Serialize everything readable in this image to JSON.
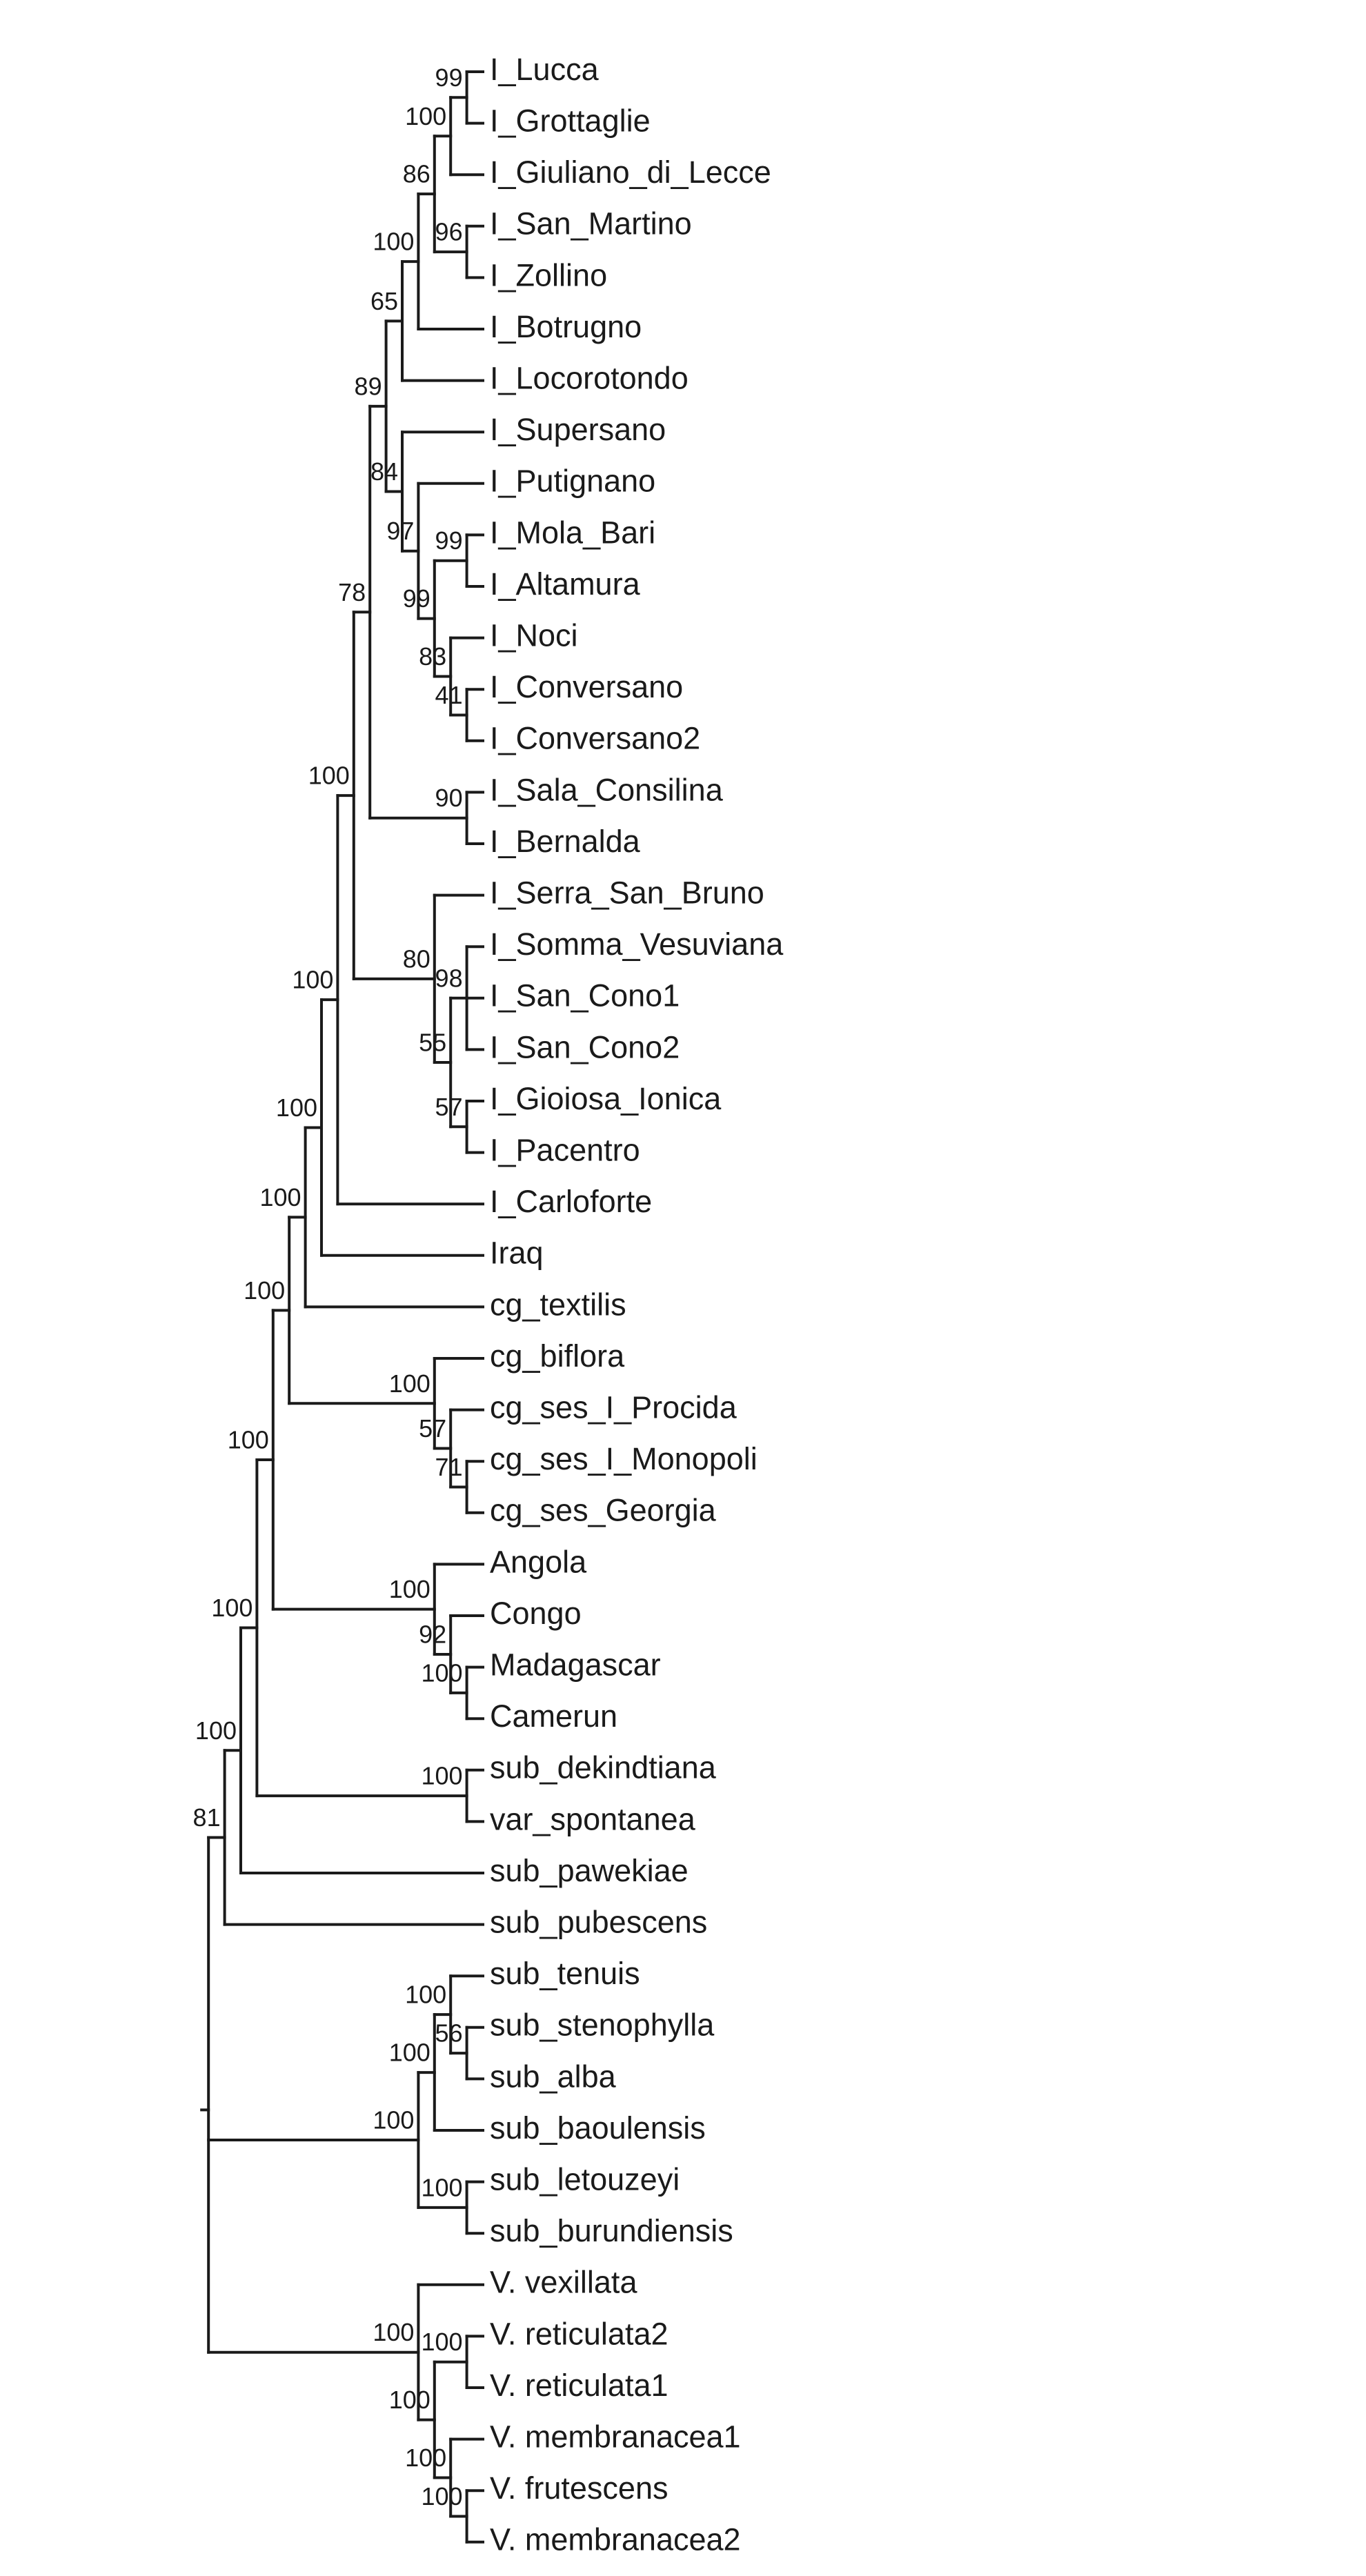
{
  "tree": {
    "label": null,
    "support": null,
    "children": [
      {
        "support": "81",
        "children": [
          {
            "support": "100",
            "children": [
              {
                "support": "100",
                "children": [
                  {
                    "support": "100",
                    "children": [
                      {
                        "support": "100",
                        "children": [
                          {
                            "support": "100",
                            "children": [
                              {
                                "support": "100",
                                "children": [
                                  {
                                    "support": "100",
                                    "children": [
                                      {
                                        "support": "100",
                                        "children": [
                                          {
                                            "support": "78",
                                            "children": [
                                              {
                                                "support": "89",
                                                "children": [
                                                  {
                                                    "support": "65",
                                                    "children": [
                                                      {
                                                        "support": "100",
                                                        "children": [
                                                          {
                                                            "support": "86",
                                                            "children": [
                                                              {
                                                                "support": "100",
                                                                "children": [
                                                                  {
                                                                    "support": "99",
                                                                    "children": [
                                                                      {
                                                                        "label": "I_Lucca"
                                                                      },
                                                                      {
                                                                        "label": "I_Grottaglie"
                                                                      }
                                                                    ]
                                                                  },
                                                                  {
                                                                    "label": "I_Giuliano_di_Lecce"
                                                                  }
                                                                ]
                                                              },
                                                              {
                                                                "support": "96",
                                                                "children": [
                                                                  {
                                                                    "label": "I_San_Martino"
                                                                  },
                                                                  {
                                                                    "label": "I_Zollino"
                                                                  }
                                                                ]
                                                              }
                                                            ]
                                                          },
                                                          {
                                                            "label": "I_Botrugno"
                                                          }
                                                        ]
                                                      },
                                                      {
                                                        "label": "I_Locorotondo"
                                                      }
                                                    ]
                                                  },
                                                  {
                                                    "support": "84",
                                                    "children": [
                                                      {
                                                        "label": "I_Supersano"
                                                      },
                                                      {
                                                        "support": "97",
                                                        "children": [
                                                          {
                                                            "label": "I_Putignano"
                                                          },
                                                          {
                                                            "support": "99",
                                                            "children": [
                                                              {
                                                                "support": "99",
                                                                "children": [
                                                                  {
                                                                    "label": "I_Mola_Bari"
                                                                  },
                                                                  {
                                                                    "label": "I_Altamura"
                                                                  }
                                                                ]
                                                              },
                                                              {
                                                                "support": "83",
                                                                "children": [
                                                                  {
                                                                    "label": "I_Noci"
                                                                  },
                                                                  {
                                                                    "support": "41",
                                                                    "children": [
                                                                      {
                                                                        "label": "I_Conversano"
                                                                      },
                                                                      {
                                                                        "label": "I_Conversano2"
                                                                      }
                                                                    ]
                                                                  }
                                                                ]
                                                              }
                                                            ]
                                                          }
                                                        ]
                                                      }
                                                    ]
                                                  }
                                                ]
                                              },
                                              {
                                                "support": "90",
                                                "children": [
                                                  {
                                                    "label": "I_Sala_Consilina"
                                                  },
                                                  {
                                                    "label": "I_Bernalda"
                                                  }
                                                ]
                                              }
                                            ]
                                          },
                                          {
                                            "support": "80",
                                            "children": [
                                              {
                                                "label": "I_Serra_San_Bruno"
                                              },
                                              {
                                                "support": "55",
                                                "children": [
                                                  {
                                                    "support": "98",
                                                    "children": [
                                                      {
                                                        "label": "I_Somma_Vesuviana"
                                                      },
                                                      {
                                                        "label": "I_San_Cono1"
                                                      },
                                                      {
                                                        "label": "I_San_Cono2"
                                                      }
                                                    ]
                                                  },
                                                  {
                                                    "support": "57",
                                                    "children": [
                                                      {
                                                        "label": "I_Gioiosa_Ionica"
                                                      },
                                                      {
                                                        "label": "I_Pacentro"
                                                      }
                                                    ]
                                                  }
                                                ]
                                              }
                                            ]
                                          }
                                        ]
                                      },
                                      {
                                        "label": "I_Carloforte"
                                      }
                                    ]
                                  },
                                  {
                                    "label": "Iraq"
                                  }
                                ]
                              },
                              {
                                "label": "cg_textilis"
                              }
                            ]
                          },
                          {
                            "support": "100",
                            "children": [
                              {
                                "label": "cg_biflora"
                              },
                              {
                                "support": "57",
                                "children": [
                                  {
                                    "label": "cg_ses_I_Procida"
                                  },
                                  {
                                    "support": "71",
                                    "children": [
                                      {
                                        "label": "cg_ses_I_Monopoli"
                                      },
                                      {
                                        "label": "cg_ses_Georgia"
                                      }
                                    ]
                                  }
                                ]
                              }
                            ]
                          }
                        ]
                      },
                      {
                        "support": "100",
                        "children": [
                          {
                            "label": "Angola"
                          },
                          {
                            "support": "92",
                            "children": [
                              {
                                "label": "Congo"
                              },
                              {
                                "support": "100",
                                "children": [
                                  {
                                    "label": "Madagascar"
                                  },
                                  {
                                    "label": "Camerun"
                                  }
                                ]
                              }
                            ]
                          }
                        ]
                      }
                    ]
                  },
                  {
                    "support": "100",
                    "children": [
                      {
                        "label": "sub_dekindtiana"
                      },
                      {
                        "label": "var_spontanea"
                      }
                    ]
                  }
                ]
              },
              {
                "label": "sub_pawekiae"
              }
            ]
          },
          {
            "label": "sub_pubescens"
          }
        ]
      },
      {
        "support": "100",
        "children": [
          {
            "support": "100",
            "children": [
              {
                "support": "100",
                "children": [
                  {
                    "label": "sub_tenuis"
                  },
                  {
                    "support": "56",
                    "children": [
                      {
                        "label": "sub_stenophylla"
                      },
                      {
                        "label": "sub_alba"
                      }
                    ]
                  }
                ]
              },
              {
                "label": "sub_baoulensis"
              }
            ]
          },
          {
            "support": "100",
            "children": [
              {
                "label": "sub_letouzeyi"
              },
              {
                "label": "sub_burundiensis"
              }
            ]
          }
        ]
      },
      {
        "support": "100",
        "children": [
          {
            "label": "V. vexillata"
          },
          {
            "support": "100",
            "children": [
              {
                "support": "100",
                "children": [
                  {
                    "label": "V. reticulata2"
                  },
                  {
                    "label": "V. reticulata1"
                  }
                ]
              },
              {
                "support": "100",
                "children": [
                  {
                    "label": "V. membranacea1"
                  },
                  {
                    "support": "100",
                    "children": [
                      {
                        "label": "V. frutescens"
                      },
                      {
                        "label": "V. membranacea2"
                      }
                    ]
                  }
                ]
              }
            ]
          }
        ]
      }
    ]
  }
}
